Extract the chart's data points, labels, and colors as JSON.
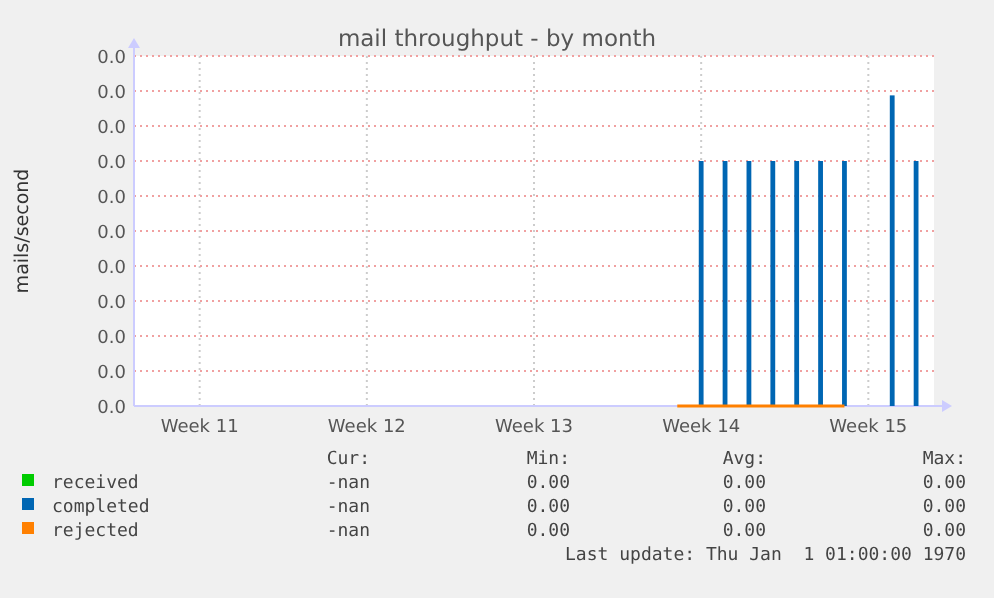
{
  "chart_data": {
    "type": "line",
    "title": "mail throughput - by month",
    "ylabel": "mails/second",
    "categories": [
      null,
      null,
      null,
      null,
      null,
      "Week 11",
      null,
      null,
      null,
      null,
      null,
      null,
      null,
      null,
      null,
      null,
      null,
      null,
      null,
      "Week 12",
      null,
      null,
      null,
      null,
      null,
      null,
      null,
      null,
      null,
      null,
      null,
      null,
      null,
      "Week 13",
      null,
      null,
      null,
      null,
      null,
      null,
      null,
      null,
      null,
      null,
      null,
      null,
      null,
      "Week 14",
      null,
      null,
      null,
      null,
      null,
      null,
      null,
      null,
      null,
      null,
      null,
      null,
      null,
      "Week 15",
      null,
      null,
      null,
      null,
      null
    ],
    "ylim": [
      0,
      0.04
    ],
    "yticks": [
      {
        "value": 0,
        "label": "0.0"
      },
      {
        "value": 0.004,
        "label": "0.0"
      },
      {
        "value": 0.008,
        "label": "0.0"
      },
      {
        "value": 0.012,
        "label": "0.0"
      },
      {
        "value": 0.016,
        "label": "0.0"
      },
      {
        "value": 0.02,
        "label": "0.0"
      },
      {
        "value": 0.024,
        "label": "0.0"
      },
      {
        "value": 0.028,
        "label": "0.0"
      },
      {
        "value": 0.032,
        "label": "0.0"
      },
      {
        "value": 0.036,
        "label": "0.0"
      },
      {
        "value": 0.04,
        "label": "0.0"
      }
    ],
    "grid": true,
    "legend": "bottom",
    "marker": "none",
    "line_style": "solid",
    "series": [
      {
        "name": "received",
        "color": "#00cc00",
        "values": [
          null,
          null,
          null,
          null,
          null,
          null,
          null,
          null,
          null,
          null,
          null,
          null,
          null,
          null,
          null,
          null,
          null,
          null,
          null,
          null,
          null,
          null,
          null,
          null,
          null,
          null,
          null,
          null,
          null,
          null,
          null,
          null,
          null,
          null,
          null,
          null,
          null,
          null,
          null,
          null,
          null,
          null,
          null,
          null,
          null,
          null,
          null,
          null,
          null,
          null,
          null,
          null,
          null,
          null,
          null,
          null,
          null,
          null,
          null,
          null,
          null,
          null,
          null,
          null,
          null,
          null,
          null
        ]
      },
      {
        "name": "completed",
        "type": "bar",
        "color": "#0066b3",
        "values": [
          null,
          null,
          null,
          null,
          null,
          null,
          null,
          null,
          null,
          null,
          null,
          null,
          null,
          null,
          null,
          null,
          null,
          null,
          null,
          null,
          null,
          null,
          null,
          null,
          null,
          null,
          null,
          null,
          null,
          null,
          null,
          null,
          null,
          null,
          null,
          null,
          null,
          null,
          null,
          null,
          null,
          null,
          null,
          null,
          null,
          0,
          0,
          0.028,
          0,
          0.028,
          0,
          0.028,
          0,
          0.028,
          0,
          0.028,
          0,
          0.028,
          0,
          0.028,
          0,
          0,
          0,
          0.0355,
          0,
          0.028,
          0
        ]
      },
      {
        "name": "rejected",
        "color": "#ff8000",
        "values": [
          null,
          null,
          null,
          null,
          null,
          null,
          null,
          null,
          null,
          null,
          null,
          null,
          null,
          null,
          null,
          null,
          null,
          null,
          null,
          null,
          null,
          null,
          null,
          null,
          null,
          null,
          null,
          null,
          null,
          null,
          null,
          null,
          null,
          null,
          null,
          null,
          null,
          null,
          null,
          null,
          null,
          null,
          null,
          null,
          null,
          0,
          0,
          0,
          0,
          0,
          0,
          0,
          0,
          0,
          0,
          0,
          0,
          0,
          0,
          0,
          null,
          null,
          null,
          null,
          null,
          null,
          null
        ]
      }
    ],
    "annotations": [
      "Cur:",
      "Min:",
      "Avg:",
      "Max:",
      "-nan",
      "0.00",
      "0.00",
      "0.00",
      "-nan",
      "0.00",
      "0.00",
      "0.00",
      "-nan",
      "0.00",
      "0.00",
      "0.00",
      "Last update: Thu Jan  1 01:00:00 1970"
    ]
  }
}
